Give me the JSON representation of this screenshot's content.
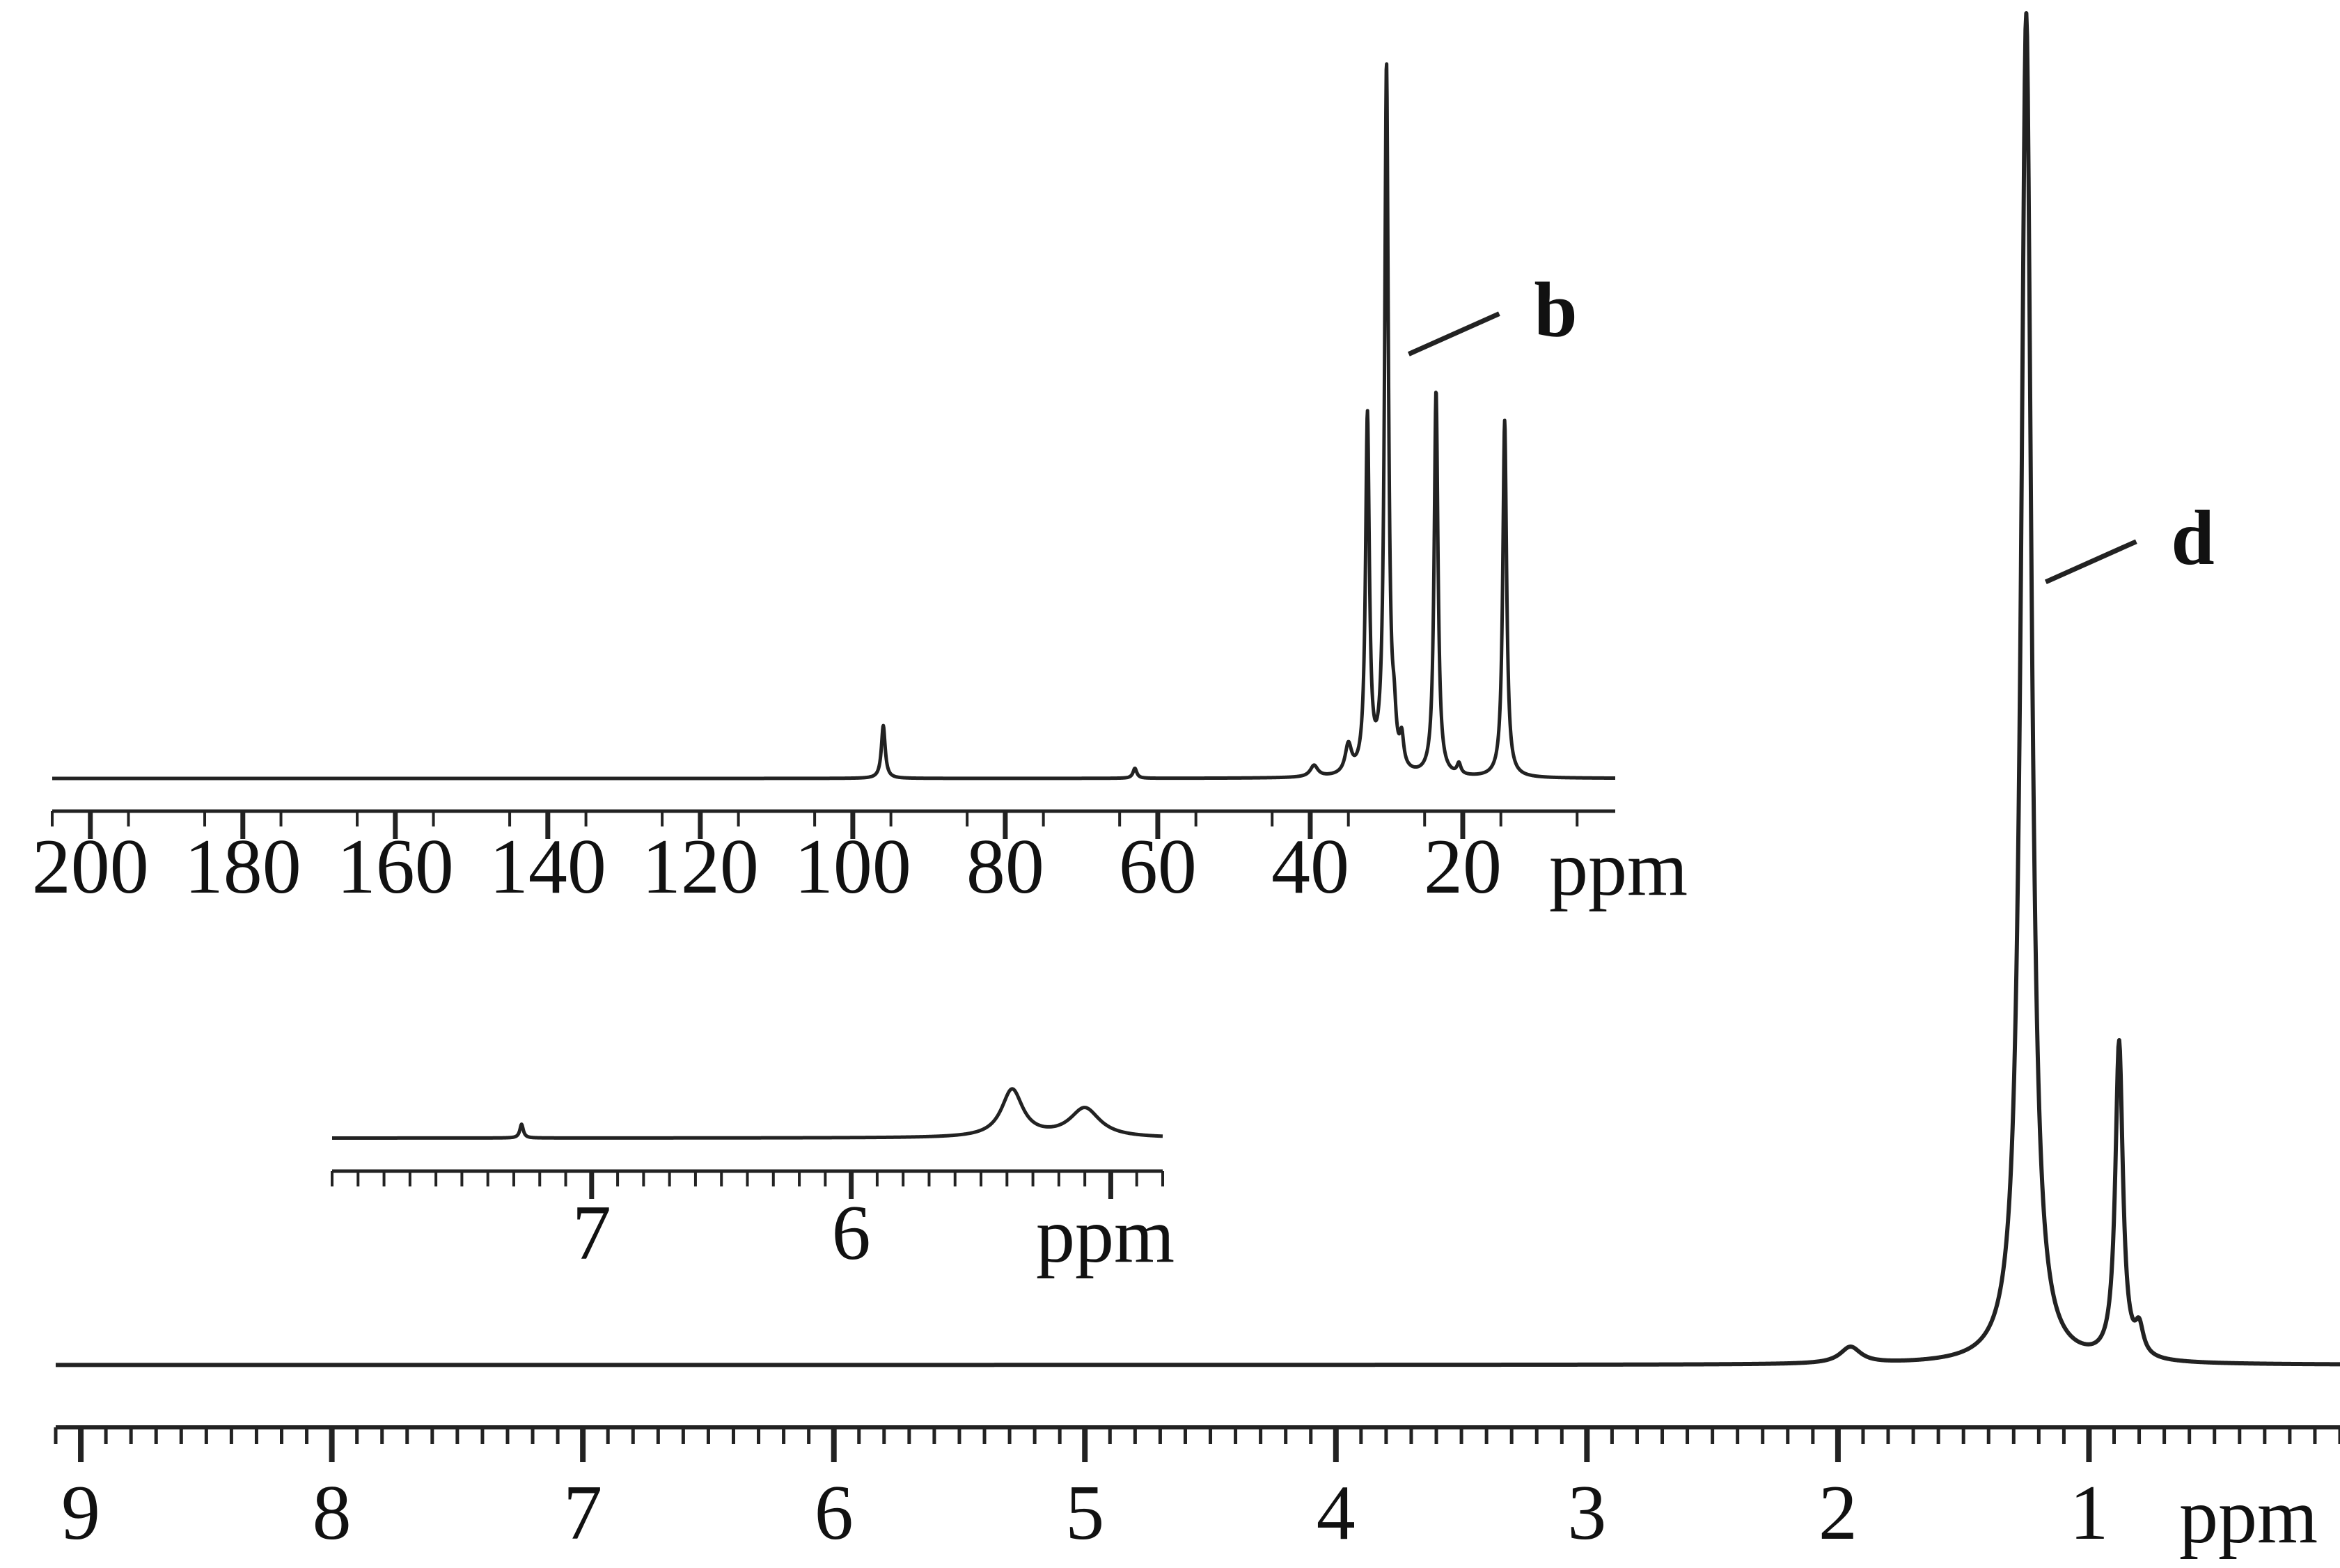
{
  "chart_data": [
    {
      "id": "main",
      "type": "line",
      "title": "",
      "xlabel": "",
      "ylabel": "",
      "unit": "ppm",
      "xlim": [
        9.1,
        0.0
      ],
      "ylim": [
        0,
        1
      ],
      "x_reversed": true,
      "major_ticks": [
        9,
        8,
        7,
        6,
        5,
        4,
        3,
        2,
        1
      ],
      "minor_tick_step": 0.1,
      "baseline": 0.02,
      "peaks": [
        {
          "center": 1.95,
          "height": 0.012,
          "width": 0.05
        },
        {
          "center": 1.25,
          "height": 0.98,
          "width": 0.025
        },
        {
          "center": 0.88,
          "height": 0.23,
          "width": 0.018
        },
        {
          "center": 0.8,
          "height": 0.02,
          "width": 0.02
        }
      ],
      "annotations": [
        {
          "text": "d",
          "x": 1.2
        }
      ],
      "grid": false
    },
    {
      "id": "inset-13c",
      "type": "line",
      "title": "",
      "xlabel": "",
      "ylabel": "",
      "unit": "ppm",
      "xlim": [
        205,
        0
      ],
      "ylim": [
        0,
        1
      ],
      "x_reversed": true,
      "major_ticks": [
        200,
        180,
        160,
        140,
        120,
        100,
        80,
        60,
        40,
        20
      ],
      "minor_tick_step": 10,
      "baseline": 0,
      "peaks": [
        {
          "center": 96,
          "height": 0.074,
          "width": 0.3
        },
        {
          "center": 63,
          "height": 0.014,
          "width": 0.3
        },
        {
          "center": 39.5,
          "height": 0.016,
          "width": 0.6
        },
        {
          "center": 35,
          "height": 0.04,
          "width": 0.5
        },
        {
          "center": 32.5,
          "height": 0.498,
          "width": 0.3
        },
        {
          "center": 30,
          "height": 0.99,
          "width": 0.3
        },
        {
          "center": 29,
          "height": 0.05,
          "width": 0.3
        },
        {
          "center": 28,
          "height": 0.04,
          "width": 0.3
        },
        {
          "center": 23.5,
          "height": 0.54,
          "width": 0.3
        },
        {
          "center": 20.5,
          "height": 0.015,
          "width": 0.3
        },
        {
          "center": 14.5,
          "height": 0.5,
          "width": 0.3
        }
      ],
      "annotations": [
        {
          "text": "b",
          "x": 28
        }
      ],
      "grid": false
    },
    {
      "id": "inset-1h-zoom",
      "type": "line",
      "title": "",
      "xlabel": "",
      "ylabel": "",
      "unit": "ppm",
      "xlim": [
        8.0,
        4.8
      ],
      "ylim": [
        0,
        1
      ],
      "x_reversed": true,
      "major_ticks": [
        7,
        6,
        5
      ],
      "labeled_ticks": [
        7,
        6
      ],
      "minor_tick_step": 0.1,
      "baseline": 0.05,
      "peaks": [
        {
          "center": 7.27,
          "height": 0.18,
          "width": 0.008
        },
        {
          "center": 5.38,
          "height": 0.62,
          "width": 0.05
        },
        {
          "center": 5.1,
          "height": 0.38,
          "width": 0.07
        }
      ],
      "grid": false
    }
  ]
}
